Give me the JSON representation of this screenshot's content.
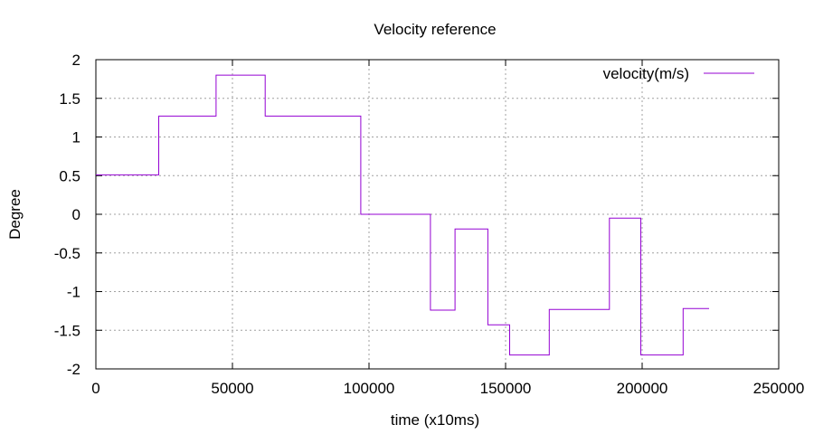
{
  "chart_data": {
    "type": "line",
    "title": "Velocity reference",
    "xlabel": "time (x10ms)",
    "ylabel": "Degree",
    "xlim": [
      0,
      250000
    ],
    "ylim": [
      -2,
      2
    ],
    "xticks": [
      0,
      50000,
      100000,
      150000,
      200000,
      250000
    ],
    "yticks": [
      -2,
      -1.5,
      -1,
      -0.5,
      0,
      0.5,
      1,
      1.5,
      2
    ],
    "xtick_labels": [
      "0",
      "50000",
      "100000",
      "150000",
      "200000",
      "250000"
    ],
    "ytick_labels": [
      "-2",
      "-1.5",
      "-1",
      "-0.5",
      "0",
      "0.5",
      "1",
      "1.5",
      "2"
    ],
    "grid": true,
    "legend_position": "top-right",
    "step": true,
    "series": [
      {
        "name": "velocity(m/s)",
        "color": "#9400d3",
        "x": [
          0,
          23000,
          44000,
          62000,
          97000,
          122500,
          131500,
          143500,
          151500,
          166000,
          188000,
          199500,
          215000,
          224500
        ],
        "y": [
          0.51,
          1.27,
          1.8,
          1.27,
          0.0,
          -1.24,
          -0.19,
          -1.43,
          -1.82,
          -1.23,
          -0.05,
          -1.82,
          -1.22,
          -1.22
        ]
      }
    ]
  }
}
